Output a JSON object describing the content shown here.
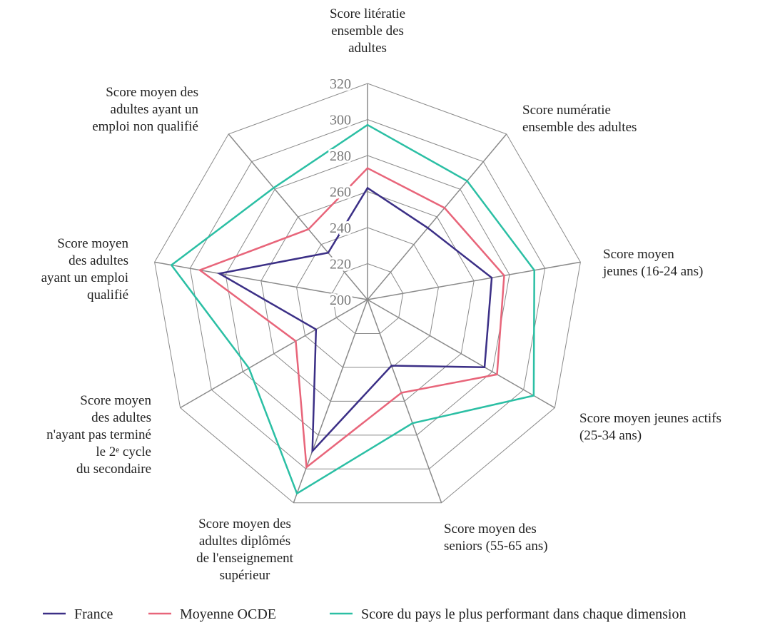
{
  "chart_data": {
    "type": "radar",
    "categories": [
      "Score litératie\nensemble des\nadultes",
      "Score numératie\nensemble des adultes",
      "Score moyen\njeunes (16-24 ans)",
      "Score moyen jeunes actifs\n(25-34 ans)",
      "Score moyen des\nseniors (55-65 ans)",
      "Score moyen des\nadultes diplômés\nde l'enseignement\nsupérieur",
      "Score moyen\ndes adultes\nn'ayant pas terminé\nle 2ᵉ cycle\ndu secondaire",
      "Score moyen\ndes adultes\nayant un emploi\nqualifié",
      "Score moyen des\nadultes ayant un\nemploi non qualifié"
    ],
    "series": [
      {
        "name": "France",
        "color": "#3b2f86",
        "values": [
          262,
          252,
          270,
          275,
          239,
          289.5,
          233,
          283.5,
          234
        ]
      },
      {
        "name": "Moyenne OCDE",
        "color": "#e8657a",
        "values": [
          273,
          266.5,
          277,
          283,
          255,
          299,
          246,
          294.5,
          251
        ]
      },
      {
        "name": "Score du pays le plus performant dans chaque dimension",
        "color": "#2bbfa4",
        "values": [
          297,
          286,
          294,
          306.5,
          273,
          314.5,
          276,
          310.5,
          281
        ]
      }
    ],
    "ylim": [
      200,
      320
    ],
    "yticks": [
      200,
      220,
      240,
      260,
      280,
      300,
      320
    ]
  }
}
